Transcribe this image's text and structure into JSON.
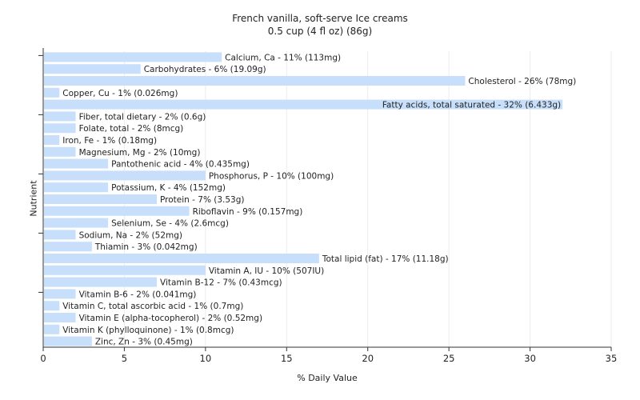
{
  "chart_data": {
    "type": "bar",
    "orientation": "horizontal",
    "title": "French vanilla, soft-serve Ice creams",
    "subtitle": "0.5 cup (4 fl oz) (86g)",
    "xlabel": "% Daily Value",
    "ylabel": "Nutrient",
    "xlim": [
      0,
      35
    ],
    "xticks": [
      0,
      5,
      10,
      15,
      20,
      25,
      30,
      35
    ],
    "grid": true,
    "bar_color": "#c7dffb",
    "categories": [
      "Calcium, Ca",
      "Carbohydrates",
      "Cholesterol",
      "Copper, Cu",
      "Fatty acids, total saturated",
      "Fiber, total dietary",
      "Folate, total",
      "Iron, Fe",
      "Magnesium, Mg",
      "Pantothenic acid",
      "Phosphorus, P",
      "Potassium, K",
      "Protein",
      "Riboflavin",
      "Selenium, Se",
      "Sodium, Na",
      "Thiamin",
      "Total lipid (fat)",
      "Vitamin A, IU",
      "Vitamin B-12",
      "Vitamin B-6",
      "Vitamin C, total ascorbic acid",
      "Vitamin E (alpha-tocopherol)",
      "Vitamin K (phylloquinone)",
      "Zinc, Zn"
    ],
    "values": [
      11,
      6,
      26,
      1,
      32,
      2,
      2,
      1,
      2,
      4,
      10,
      4,
      7,
      9,
      4,
      2,
      3,
      17,
      10,
      7,
      2,
      1,
      2,
      1,
      3
    ],
    "labels": [
      "Calcium, Ca - 11% (113mg)",
      "Carbohydrates - 6% (19.09g)",
      "Cholesterol - 26% (78mg)",
      "Copper, Cu - 1% (0.026mg)",
      "Fatty acids, total saturated - 32% (6.433g)",
      "Fiber, total dietary - 2% (0.6g)",
      "Folate, total - 2% (8mcg)",
      "Iron, Fe - 1% (0.18mg)",
      "Magnesium, Mg - 2% (10mg)",
      "Pantothenic acid - 4% (0.435mg)",
      "Phosphorus, P - 10% (100mg)",
      "Potassium, K - 4% (152mg)",
      "Protein - 7% (3.53g)",
      "Riboflavin - 9% (0.157mg)",
      "Selenium, Se - 4% (2.6mcg)",
      "Sodium, Na - 2% (52mg)",
      "Thiamin - 3% (0.042mg)",
      "Total lipid (fat) - 17% (11.18g)",
      "Vitamin A, IU - 10% (507IU)",
      "Vitamin B-12 - 7% (0.43mcg)",
      "Vitamin B-6 - 2% (0.041mg)",
      "Vitamin C, total ascorbic acid - 1% (0.7mg)",
      "Vitamin E (alpha-tocopherol) - 2% (0.52mg)",
      "Vitamin K (phylloquinone) - 1% (0.8mcg)",
      "Zinc, Zn - 3% (0.45mg)"
    ]
  }
}
